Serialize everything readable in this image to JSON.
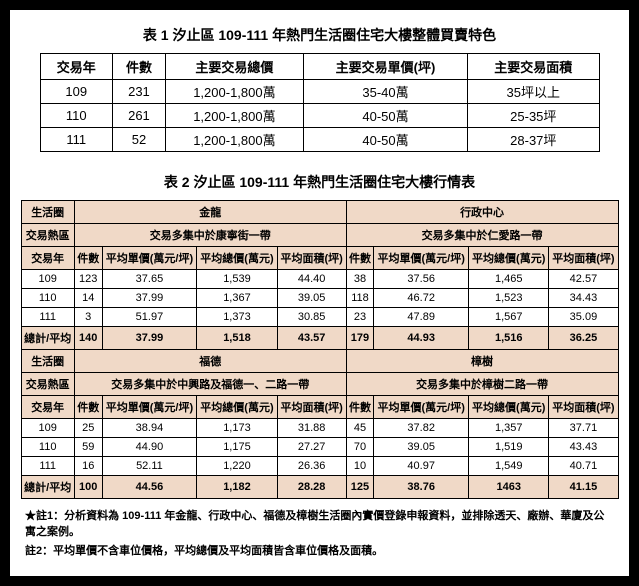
{
  "table1": {
    "title": "表 1 汐止區 109-111 年熱門生活圈住宅大樓整體買賣特色",
    "headers": [
      "交易年",
      "件數",
      "主要交易總價",
      "主要交易單價(坪)",
      "主要交易面積"
    ],
    "rows": [
      [
        "109",
        "231",
        "1,200-1,800萬",
        "35-40萬",
        "35坪以上"
      ],
      [
        "110",
        "261",
        "1,200-1,800萬",
        "40-50萬",
        "25-35坪"
      ],
      [
        "111",
        "52",
        "1,200-1,800萬",
        "40-50萬",
        "28-37坪"
      ]
    ]
  },
  "table2": {
    "title": "表 2 汐止區 109-111 年熱門生活圈住宅大樓行情表",
    "labels": {
      "zone": "生活圈",
      "hot": "交易熱區",
      "year": "交易年",
      "cnt": "件數",
      "unit": "平均單價(萬元/坪)",
      "total": "平均總價(萬元)",
      "area": "平均面積(坪)",
      "sum": "總計/平均"
    },
    "sections": [
      {
        "zones": [
          "金龍",
          "行政中心"
        ],
        "hots": [
          "交易多集中於康寧街一帶",
          "交易多集中於仁愛路一帶"
        ],
        "rows": [
          [
            "109",
            "123",
            "37.65",
            "1,539",
            "44.40",
            "38",
            "37.56",
            "1,465",
            "42.57"
          ],
          [
            "110",
            "14",
            "37.99",
            "1,367",
            "39.05",
            "118",
            "46.72",
            "1,523",
            "34.43"
          ],
          [
            "111",
            "3",
            "51.97",
            "1,373",
            "30.85",
            "23",
            "47.89",
            "1,567",
            "35.09"
          ]
        ],
        "totals": [
          "140",
          "37.99",
          "1,518",
          "43.57",
          "179",
          "44.93",
          "1,516",
          "36.25"
        ]
      },
      {
        "zones": [
          "福德",
          "樟樹"
        ],
        "hots": [
          "交易多集中於中興路及福德一、二路一帶",
          "交易多集中於樟樹二路一帶"
        ],
        "rows": [
          [
            "109",
            "25",
            "38.94",
            "1,173",
            "31.88",
            "45",
            "37.82",
            "1,357",
            "37.71"
          ],
          [
            "110",
            "59",
            "44.90",
            "1,175",
            "27.27",
            "70",
            "39.05",
            "1,519",
            "43.43"
          ],
          [
            "111",
            "16",
            "52.11",
            "1,220",
            "26.36",
            "10",
            "40.97",
            "1,549",
            "40.71"
          ]
        ],
        "totals": [
          "100",
          "44.56",
          "1,182",
          "28.28",
          "125",
          "38.76",
          "1463",
          "41.15"
        ]
      }
    ]
  },
  "notes": {
    "n1": "★註1：分析資料為 109-111 年金龍、行政中心、福德及樟樹生活圈內實價登錄申報資料，並排除透天、廠辦、華廈及公寓之案例。",
    "n2": "註2：平均單價不含車位價格，平均總價及平均面積皆含車位價格及面積。"
  }
}
